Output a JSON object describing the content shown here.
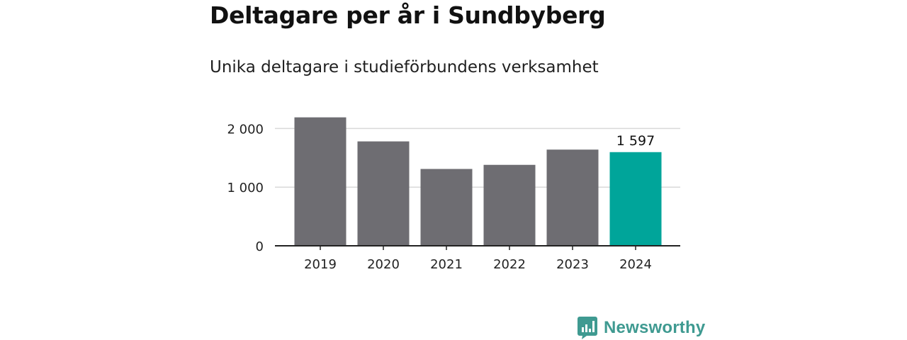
{
  "header": {
    "title": "Deltagare per år i Sundbyberg",
    "subtitle": "Unika deltagare i studieförbundens verksamhet"
  },
  "chart_data": {
    "type": "bar",
    "title": "Deltagare per år i Sundbyberg",
    "subtitle": "Unika deltagare i studieförbundens verksamhet",
    "xlabel": "",
    "ylabel": "",
    "categories": [
      "2019",
      "2020",
      "2021",
      "2022",
      "2023",
      "2024"
    ],
    "values": [
      2190,
      1780,
      1310,
      1380,
      1640,
      1597
    ],
    "ylim": [
      0,
      2000
    ],
    "yticks": [
      0,
      1000,
      2000
    ],
    "ytick_labels": [
      "0",
      "1 000",
      "2 000"
    ],
    "highlight_index": 5,
    "data_labels": [
      {
        "index": 5,
        "text": "1 597"
      }
    ],
    "grid": true,
    "colors": {
      "default_bar": "#6e6d72",
      "highlight_bar": "#00a59a",
      "grid": "#d9d9d9",
      "axis": "#222222"
    }
  },
  "footer": {
    "brand_name": "Newsworthy",
    "brand_color": "#3f9a91",
    "brand_icon": "bar-chart-speech-bubble-icon"
  }
}
